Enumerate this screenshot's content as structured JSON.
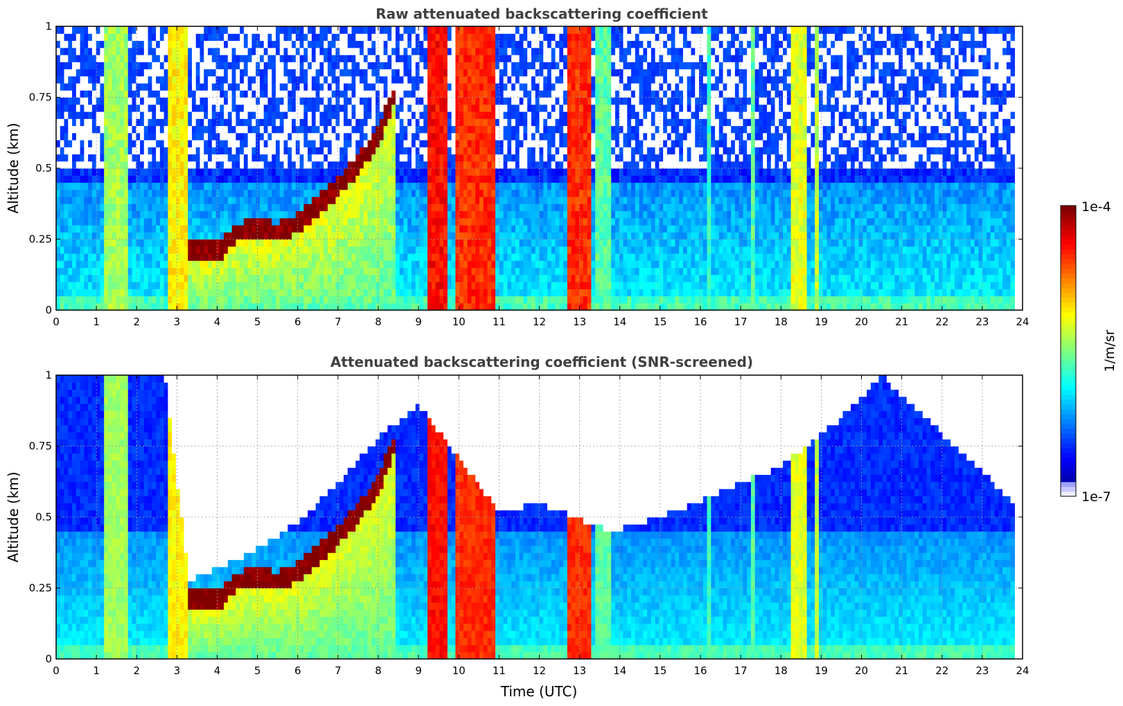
{
  "chart_data": [
    {
      "type": "heatmap",
      "title": "Raw attenuated backscattering coefficient",
      "xlabel": "",
      "ylabel": "Altitude (km)",
      "xlim": [
        0,
        24
      ],
      "ylim": [
        0,
        1
      ],
      "xticks": [
        "0",
        "1",
        "2",
        "3",
        "4",
        "5",
        "6",
        "7",
        "8",
        "9",
        "10",
        "11",
        "12",
        "13",
        "14",
        "15",
        "16",
        "17",
        "18",
        "19",
        "20",
        "21",
        "22",
        "23",
        "24"
      ],
      "yticks": [
        "0",
        "0.25",
        "0.5",
        "0.75",
        "1"
      ],
      "grid": true,
      "colorscale": "jet",
      "data_end_hour": 23.8,
      "cloud_layer": {
        "description_note": "low cloud base rising through the morning",
        "time_utc": [
          3.3,
          4.0,
          4.5,
          5.0,
          5.5,
          6.0,
          6.5,
          7.0,
          7.5,
          8.0,
          8.4
        ],
        "base_km": [
          0.18,
          0.17,
          0.24,
          0.25,
          0.24,
          0.27,
          0.33,
          0.4,
          0.48,
          0.58,
          0.72
        ],
        "log_beta": -4.0
      },
      "columns": [
        {
          "t0": 1.2,
          "t1": 1.8,
          "log_beta": -5.4
        },
        {
          "t0": 2.75,
          "t1": 3.3,
          "log_beta": -5.1
        },
        {
          "t0": 9.2,
          "t1": 9.7,
          "log_beta": -4.4
        },
        {
          "t0": 9.9,
          "t1": 10.9,
          "log_beta": -4.5
        },
        {
          "t0": 12.7,
          "t1": 13.3,
          "log_beta": -4.5
        },
        {
          "t0": 13.4,
          "t1": 13.8,
          "log_beta": -5.6
        },
        {
          "t0": 16.2,
          "t1": 16.3,
          "log_beta": -5.7
        },
        {
          "t0": 17.3,
          "t1": 17.4,
          "log_beta": -5.6
        },
        {
          "t0": 18.2,
          "t1": 18.6,
          "log_beta": -5.2
        },
        {
          "t0": 18.8,
          "t1": 18.9,
          "log_beta": -5.3
        }
      ],
      "background": {
        "clear_top_km": 0.45,
        "log_beta_low": -6.2,
        "log_beta_high": -6.5
      }
    },
    {
      "type": "heatmap",
      "title": "Attenuated backscattering coefficient (SNR-screened)",
      "xlabel": "Time (UTC)",
      "ylabel": "Altitude (km)",
      "xlim": [
        0,
        24
      ],
      "ylim": [
        0,
        1
      ],
      "xticks": [
        "0",
        "1",
        "2",
        "3",
        "4",
        "5",
        "6",
        "7",
        "8",
        "9",
        "10",
        "11",
        "12",
        "13",
        "14",
        "15",
        "16",
        "17",
        "18",
        "19",
        "20",
        "21",
        "22",
        "23",
        "24"
      ],
      "yticks": [
        "0",
        "0.25",
        "0.5",
        "0.75",
        "1"
      ],
      "grid": true,
      "colorscale": "jet",
      "data_end_hour": 23.8,
      "screened_top_km": {
        "time_utc": [
          0,
          2.7,
          3.3,
          4.5,
          6.0,
          7.0,
          8.0,
          9.0,
          11.0,
          12.0,
          13.8,
          15.0,
          16.0,
          17.0,
          18.0,
          19.5,
          20.5,
          23.8
        ],
        "top_km": [
          1.0,
          1.0,
          0.28,
          0.35,
          0.48,
          0.62,
          0.78,
          0.9,
          0.52,
          0.55,
          0.45,
          0.5,
          0.56,
          0.62,
          0.68,
          0.85,
          1.0,
          0.55
        ]
      }
    }
  ],
  "colorbar": {
    "label": "1/m/sr",
    "max_label": "1e-4",
    "min_label": "1e-7",
    "log_min": -7,
    "log_max": -4
  }
}
